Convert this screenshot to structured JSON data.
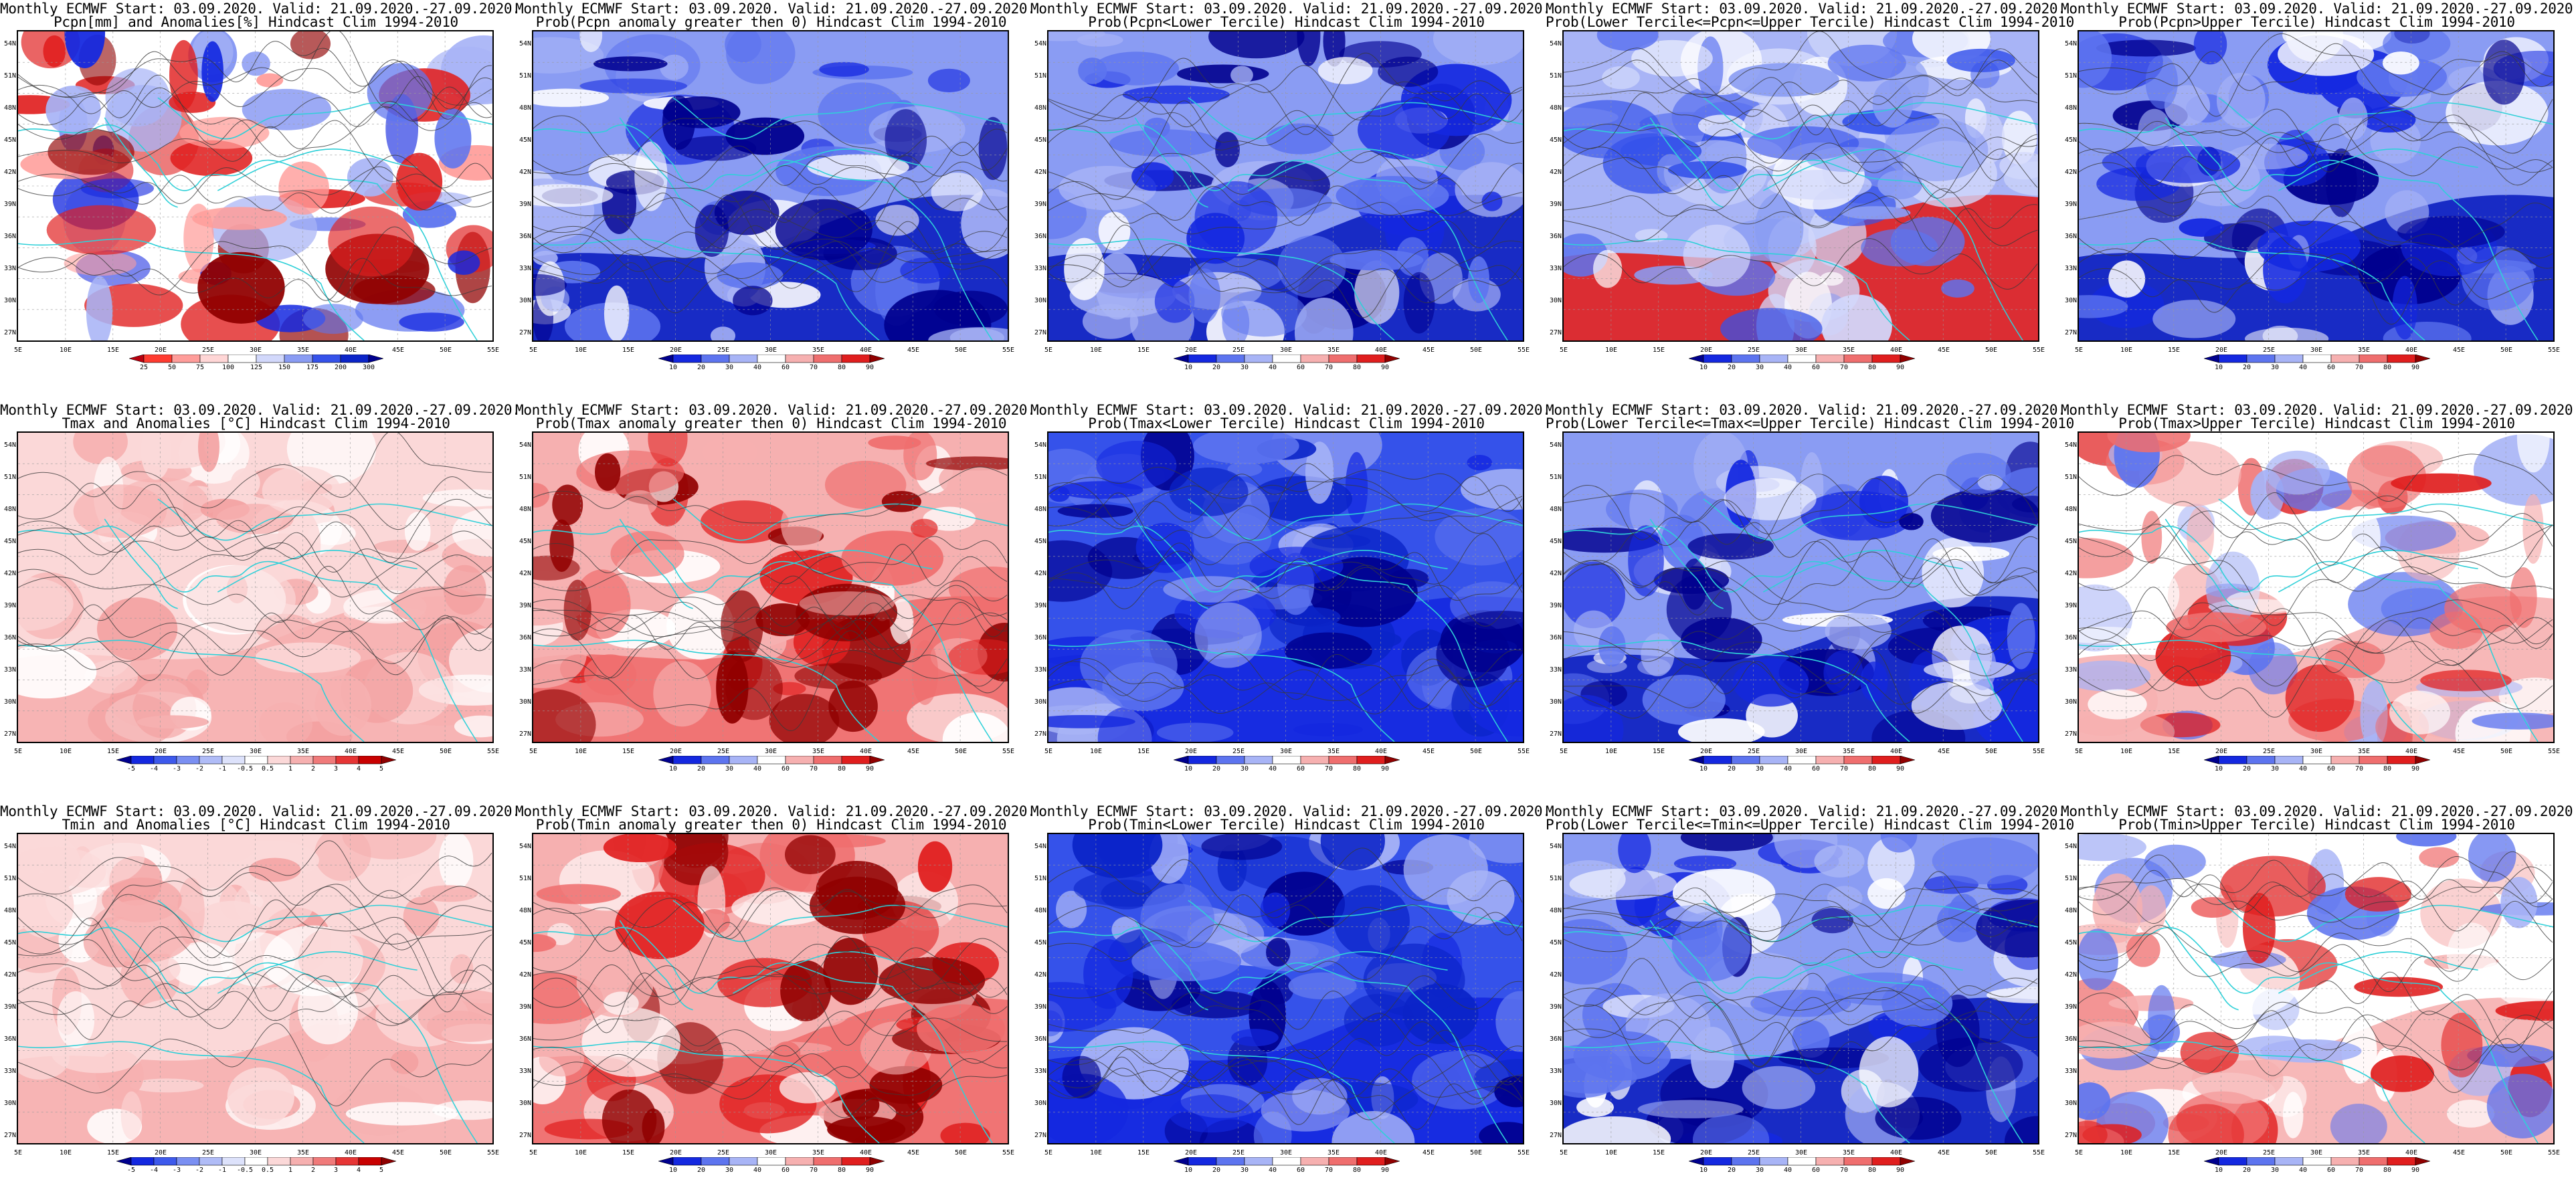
{
  "panels": [
    {
      "l1": "Monthly ECMWF Start: 03.09.2020. Valid: 21.09.2020.-27.09.2020.",
      "l2": "Pcpn[mm] and Anomalies[%] Hindcast Clim 1994-2010",
      "scheme": "anom",
      "cbar": "pct"
    },
    {
      "l1": "Monthly ECMWF Start: 03.09.2020. Valid: 21.09.2020.-27.09.2020.",
      "l2": "Prob(Pcpn anomaly greater then 0) Hindcast Clim 1994-2010",
      "scheme": "blue",
      "cbar": "prob"
    },
    {
      "l1": "Monthly ECMWF Start: 03.09.2020. Valid: 21.09.2020.-27.09.2020.",
      "l2": "Prob(Pcpn<Lower Tercile) Hindcast Clim 1994-2010",
      "scheme": "blue",
      "cbar": "prob"
    },
    {
      "l1": "Monthly ECMWF Start: 03.09.2020. Valid: 21.09.2020.-27.09.2020.",
      "l2": "Prob(Lower Tercile<=Pcpn<=Upper Tercile) Hindcast Clim 1994-2010",
      "scheme": "mixred",
      "cbar": "prob"
    },
    {
      "l1": "Monthly ECMWF Start: 03.09.2020. Valid: 21.09.2020.-27.09.2020.",
      "l2": "Prob(Pcpn>Upper Tercile) Hindcast Clim 1994-2010",
      "scheme": "blue",
      "cbar": "prob"
    },
    {
      "l1": "Monthly ECMWF Start: 03.09.2020. Valid: 21.09.2020.-27.09.2020.",
      "l2": "Tmax and Anomalies [°C] Hindcast Clim 1994-2010",
      "scheme": "pink",
      "cbar": "temp"
    },
    {
      "l1": "Monthly ECMWF Start: 03.09.2020. Valid: 21.09.2020.-27.09.2020.",
      "l2": "Prob(Tmax anomaly greater then 0) Hindcast Clim 1994-2010",
      "scheme": "red",
      "cbar": "prob"
    },
    {
      "l1": "Monthly ECMWF Start: 03.09.2020. Valid: 21.09.2020.-27.09.2020.",
      "l2": "Prob(Tmax<Lower Tercile) Hindcast Clim 1994-2010",
      "scheme": "deepblue",
      "cbar": "prob"
    },
    {
      "l1": "Monthly ECMWF Start: 03.09.2020. Valid: 21.09.2020.-27.09.2020.",
      "l2": "Prob(Lower Tercile<=Tmax<=Upper Tercile) Hindcast Clim 1994-2010",
      "scheme": "blue",
      "cbar": "prob"
    },
    {
      "l1": "Monthly ECMWF Start: 03.09.2020. Valid: 21.09.2020.-27.09.2020.",
      "l2": "Prob(Tmax>Upper Tercile) Hindcast Clim 1994-2010",
      "scheme": "mixpink",
      "cbar": "prob"
    },
    {
      "l1": "Monthly ECMWF Start: 03.09.2020. Valid: 21.09.2020.-27.09.2020.",
      "l2": "Tmin and Anomalies [°C] Hindcast Clim 1994-2010",
      "scheme": "pink",
      "cbar": "temp"
    },
    {
      "l1": "Monthly ECMWF Start: 03.09.2020. Valid: 21.09.2020.-27.09.2020.",
      "l2": "Prob(Tmin anomaly greater then 0) Hindcast Clim 1994-2010",
      "scheme": "red",
      "cbar": "prob"
    },
    {
      "l1": "Monthly ECMWF Start: 03.09.2020. Valid: 21.09.2020.-27.09.2020.",
      "l2": "Prob(Tmin<Lower Tercile) Hindcast Clim 1994-2010",
      "scheme": "deepblue",
      "cbar": "prob"
    },
    {
      "l1": "Monthly ECMWF Start: 03.09.2020. Valid: 21.09.2020.-27.09.2020.",
      "l2": "Prob(Lower Tercile<=Tmin<=Upper Tercile) Hindcast Clim 1994-2010",
      "scheme": "blue",
      "cbar": "prob"
    },
    {
      "l1": "Monthly ECMWF Start: 03.09.2020. Valid: 21.09.2020.-27.09.2020.",
      "l2": "Prob(Tmin>Upper Tercile) Hindcast Clim 1994-2010",
      "scheme": "mixpink",
      "cbar": "prob"
    }
  ],
  "lat_labels": [
    "54N",
    "51N",
    "48N",
    "45N",
    "42N",
    "39N",
    "36N",
    "33N",
    "30N",
    "27N"
  ],
  "lon_labels": [
    "5E",
    "10E",
    "15E",
    "20E",
    "25E",
    "30E",
    "35E",
    "40E",
    "45E",
    "50E",
    "55E"
  ],
  "colorbars": {
    "pct": {
      "labels": [
        "25",
        "50",
        "75",
        "100",
        "125",
        "150",
        "175",
        "200",
        "300"
      ],
      "colors": [
        "#b8000e",
        "#ff3b30",
        "#ff9d9a",
        "#ffd6d6",
        "#ffffff",
        "#d2d8fb",
        "#8a9cf3",
        "#3552ea",
        "#0b24c8",
        "#00008e"
      ]
    },
    "prob": {
      "labels": [
        "10",
        "20",
        "30",
        "40",
        "60",
        "70",
        "80",
        "90"
      ],
      "colors": [
        "#00008e",
        "#1428e0",
        "#5d74ef",
        "#a8b4f6",
        "#ffffff",
        "#f6b0b0",
        "#ef6e6e",
        "#e01e1e",
        "#900000"
      ]
    },
    "temp": {
      "labels": [
        "-5",
        "-4",
        "-3",
        "-2",
        "-1",
        "-0.5",
        "0.5",
        "1",
        "2",
        "3",
        "4",
        "5"
      ],
      "colors": [
        "#00008e",
        "#1428e0",
        "#3d59ec",
        "#7a8ff2",
        "#b0bcf7",
        "#dde2fb",
        "#ffffff",
        "#fbd8d8",
        "#f6b0b0",
        "#f07a7a",
        "#e63535",
        "#c80000",
        "#8e0000"
      ]
    }
  },
  "style": {
    "coast": "#2fd0d8",
    "contour": "#3a3a3a"
  }
}
